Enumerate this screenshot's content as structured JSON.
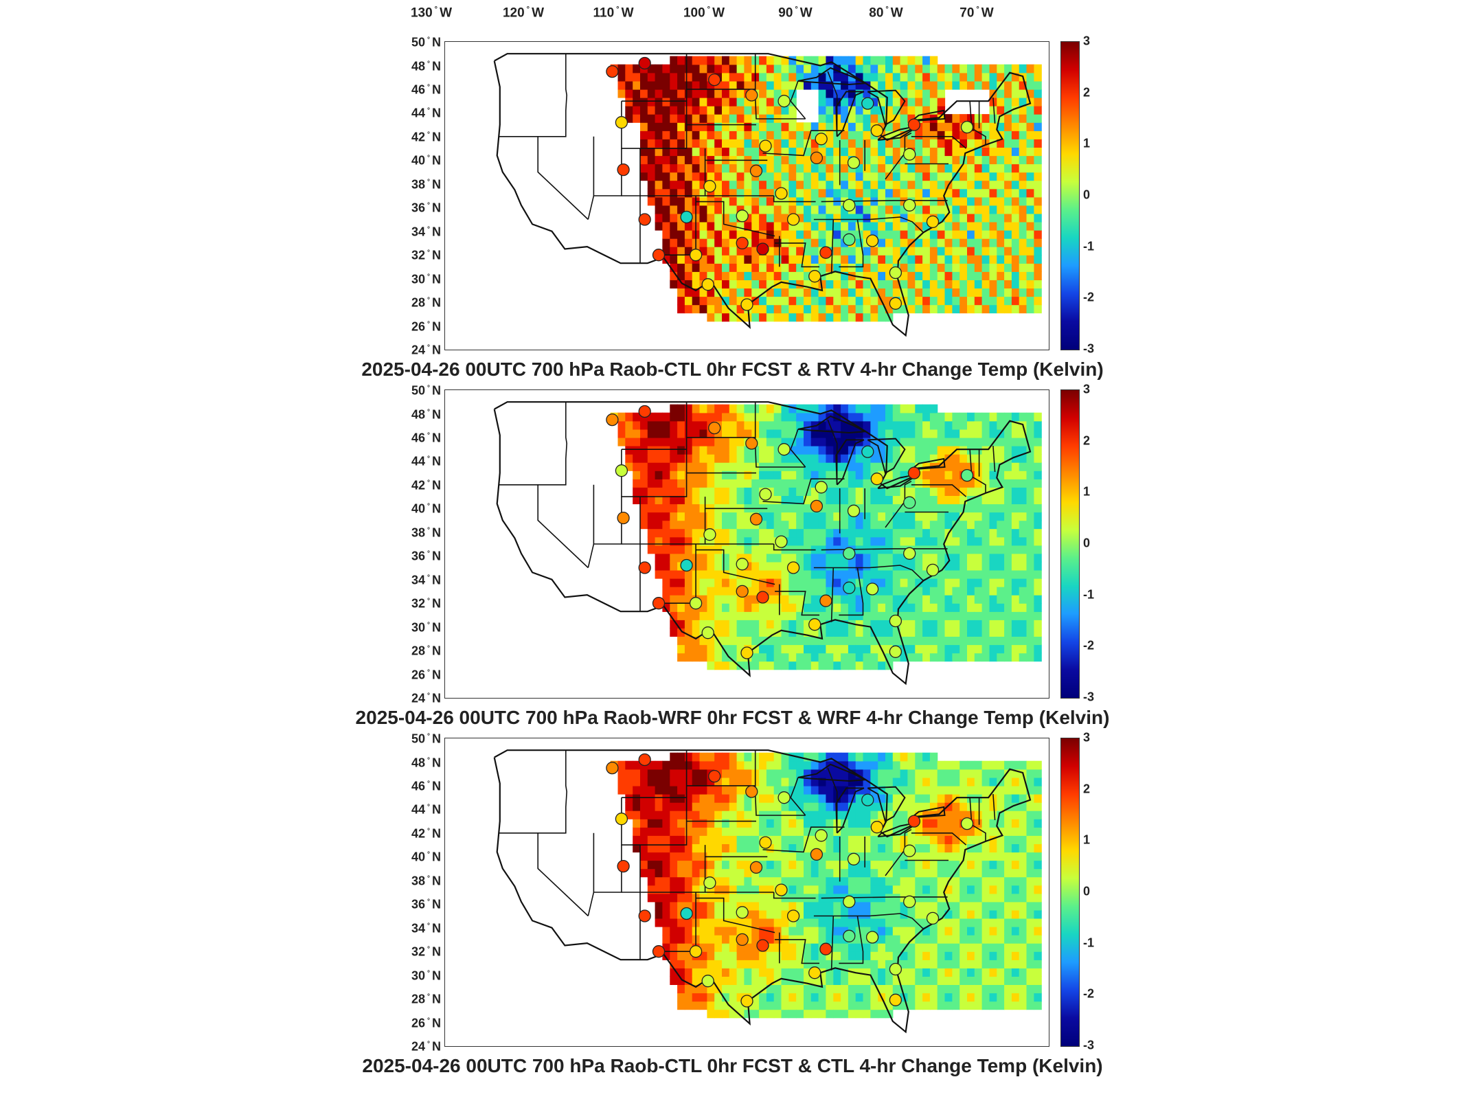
{
  "longitude_labels": [
    {
      "deg": "130",
      "dir": "W"
    },
    {
      "deg": "120",
      "dir": "W"
    },
    {
      "deg": "110",
      "dir": "W"
    },
    {
      "deg": "100",
      "dir": "W"
    },
    {
      "deg": "90",
      "dir": "W"
    },
    {
      "deg": "80",
      "dir": "W"
    },
    {
      "deg": "70",
      "dir": "W"
    }
  ],
  "latitude_labels": [
    "50",
    "48",
    "46",
    "44",
    "42",
    "40",
    "38",
    "36",
    "34",
    "32",
    "30",
    "28",
    "26",
    "24"
  ],
  "latitude_dir": "N",
  "colorbar": {
    "ticks": [
      "3",
      "2",
      "1",
      "0",
      "-1",
      "-2",
      "-3"
    ],
    "min": -3,
    "max": 3,
    "colors": [
      "#7a0000",
      "#d10000",
      "#ff3c00",
      "#ff8a00",
      "#ffd800",
      "#c8ff3c",
      "#5cf08a",
      "#19d6c2",
      "#1e9cff",
      "#1446e6",
      "#0a0aa0",
      "#00007a"
    ]
  },
  "panels": [
    {
      "title": "2025-04-26 00UTC 700 hPa Raob-CTL 0hr FCST & RTV 4-hr Change Temp (Kelvin)",
      "field": "RTV"
    },
    {
      "title": "2025-04-26 00UTC 700 hPa Raob-WRF 0hr FCST & WRF 4-hr Change Temp (Kelvin)",
      "field": "WRF"
    },
    {
      "title": "2025-04-26 00UTC 700 hPa Raob-CTL 0hr FCST & CTL 4-hr Change Temp (Kelvin)",
      "field": "CTL"
    }
  ],
  "station_values_panel1": [
    {
      "lon": -112,
      "lat": 47.5,
      "v": 1.6
    },
    {
      "lon": -108.5,
      "lat": 48.2,
      "v": 2.1
    },
    {
      "lon": -101,
      "lat": 46.8,
      "v": 1.8
    },
    {
      "lon": -97,
      "lat": 45.5,
      "v": 1.4
    },
    {
      "lon": -111,
      "lat": 43.2,
      "v": 0.8
    },
    {
      "lon": -93.5,
      "lat": 45.0,
      "v": 0.4
    },
    {
      "lon": -84.5,
      "lat": 44.8,
      "v": -0.6
    },
    {
      "lon": -79.5,
      "lat": 43.0,
      "v": 1.9
    },
    {
      "lon": -73.8,
      "lat": 42.8,
      "v": 0.3
    },
    {
      "lon": -89.5,
      "lat": 41.8,
      "v": 0.6
    },
    {
      "lon": -83.5,
      "lat": 42.5,
      "v": 0.9
    },
    {
      "lon": -95.5,
      "lat": 41.2,
      "v": 0.7
    },
    {
      "lon": -101.5,
      "lat": 37.8,
      "v": 0.6
    },
    {
      "lon": -110.8,
      "lat": 39.2,
      "v": 1.7
    },
    {
      "lon": -96.5,
      "lat": 39.1,
      "v": 1.4
    },
    {
      "lon": -90,
      "lat": 40.2,
      "v": 1.5
    },
    {
      "lon": -86,
      "lat": 39.8,
      "v": 0.5
    },
    {
      "lon": -80,
      "lat": 40.5,
      "v": 0.3
    },
    {
      "lon": -104,
      "lat": 35.2,
      "v": -0.5
    },
    {
      "lon": -108.5,
      "lat": 35.0,
      "v": 1.9
    },
    {
      "lon": -98,
      "lat": 35.3,
      "v": 0.5
    },
    {
      "lon": -93.8,
      "lat": 37.2,
      "v": 0.7
    },
    {
      "lon": -92.5,
      "lat": 35.0,
      "v": 1.0
    },
    {
      "lon": -86.5,
      "lat": 36.2,
      "v": 0.3
    },
    {
      "lon": -80,
      "lat": 36.2,
      "v": 0.4
    },
    {
      "lon": -103,
      "lat": 32.0,
      "v": 0.7
    },
    {
      "lon": -98,
      "lat": 33.0,
      "v": 1.6
    },
    {
      "lon": -95.8,
      "lat": 32.5,
      "v": 2.1
    },
    {
      "lon": -89,
      "lat": 32.2,
      "v": 1.7
    },
    {
      "lon": -86.5,
      "lat": 33.3,
      "v": -0.3
    },
    {
      "lon": -84,
      "lat": 33.2,
      "v": 0.6
    },
    {
      "lon": -107,
      "lat": 32.0,
      "v": 1.9
    },
    {
      "lon": -101.7,
      "lat": 29.5,
      "v": 0.6
    },
    {
      "lon": -97.5,
      "lat": 27.8,
      "v": 1.0
    },
    {
      "lon": -90.2,
      "lat": 30.2,
      "v": 0.9
    },
    {
      "lon": -81.5,
      "lat": 30.5,
      "v": 0.5
    },
    {
      "lon": -81.5,
      "lat": 27.9,
      "v": 0.8
    },
    {
      "lon": -77.5,
      "lat": 34.8,
      "v": 0.6
    }
  ]
}
